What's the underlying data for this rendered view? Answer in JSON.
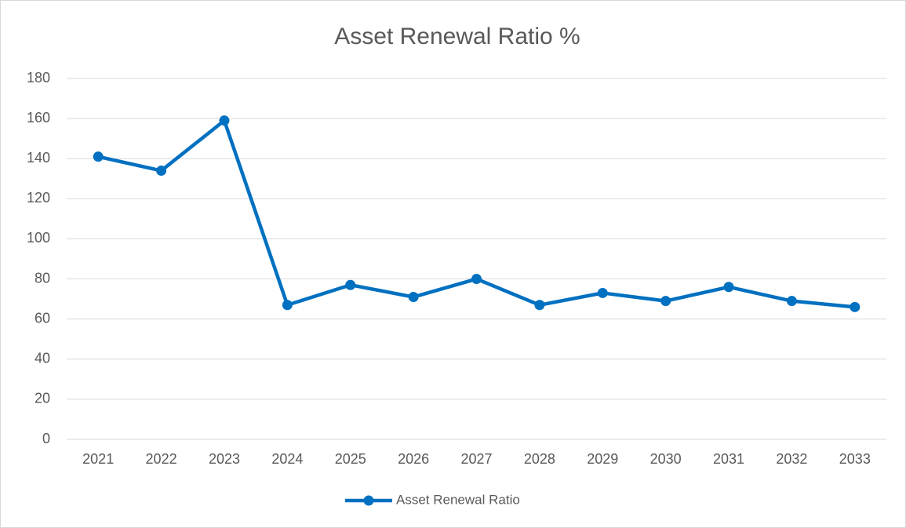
{
  "chart_data": {
    "type": "line",
    "title": "Asset Renewal Ratio %",
    "categories": [
      "2021",
      "2022",
      "2023",
      "2024",
      "2025",
      "2026",
      "2027",
      "2028",
      "2029",
      "2030",
      "2031",
      "2032",
      "2033"
    ],
    "series": [
      {
        "name": "Asset Renewal Ratio",
        "color": "#0070c0",
        "values": [
          141,
          134,
          159,
          67,
          77,
          71,
          80,
          67,
          73,
          69,
          76,
          69,
          66
        ]
      }
    ],
    "ylim": [
      0,
      180
    ],
    "yticks": [
      0,
      20,
      40,
      60,
      80,
      100,
      120,
      140,
      160,
      180
    ],
    "grid": true,
    "legend": "bottom"
  }
}
